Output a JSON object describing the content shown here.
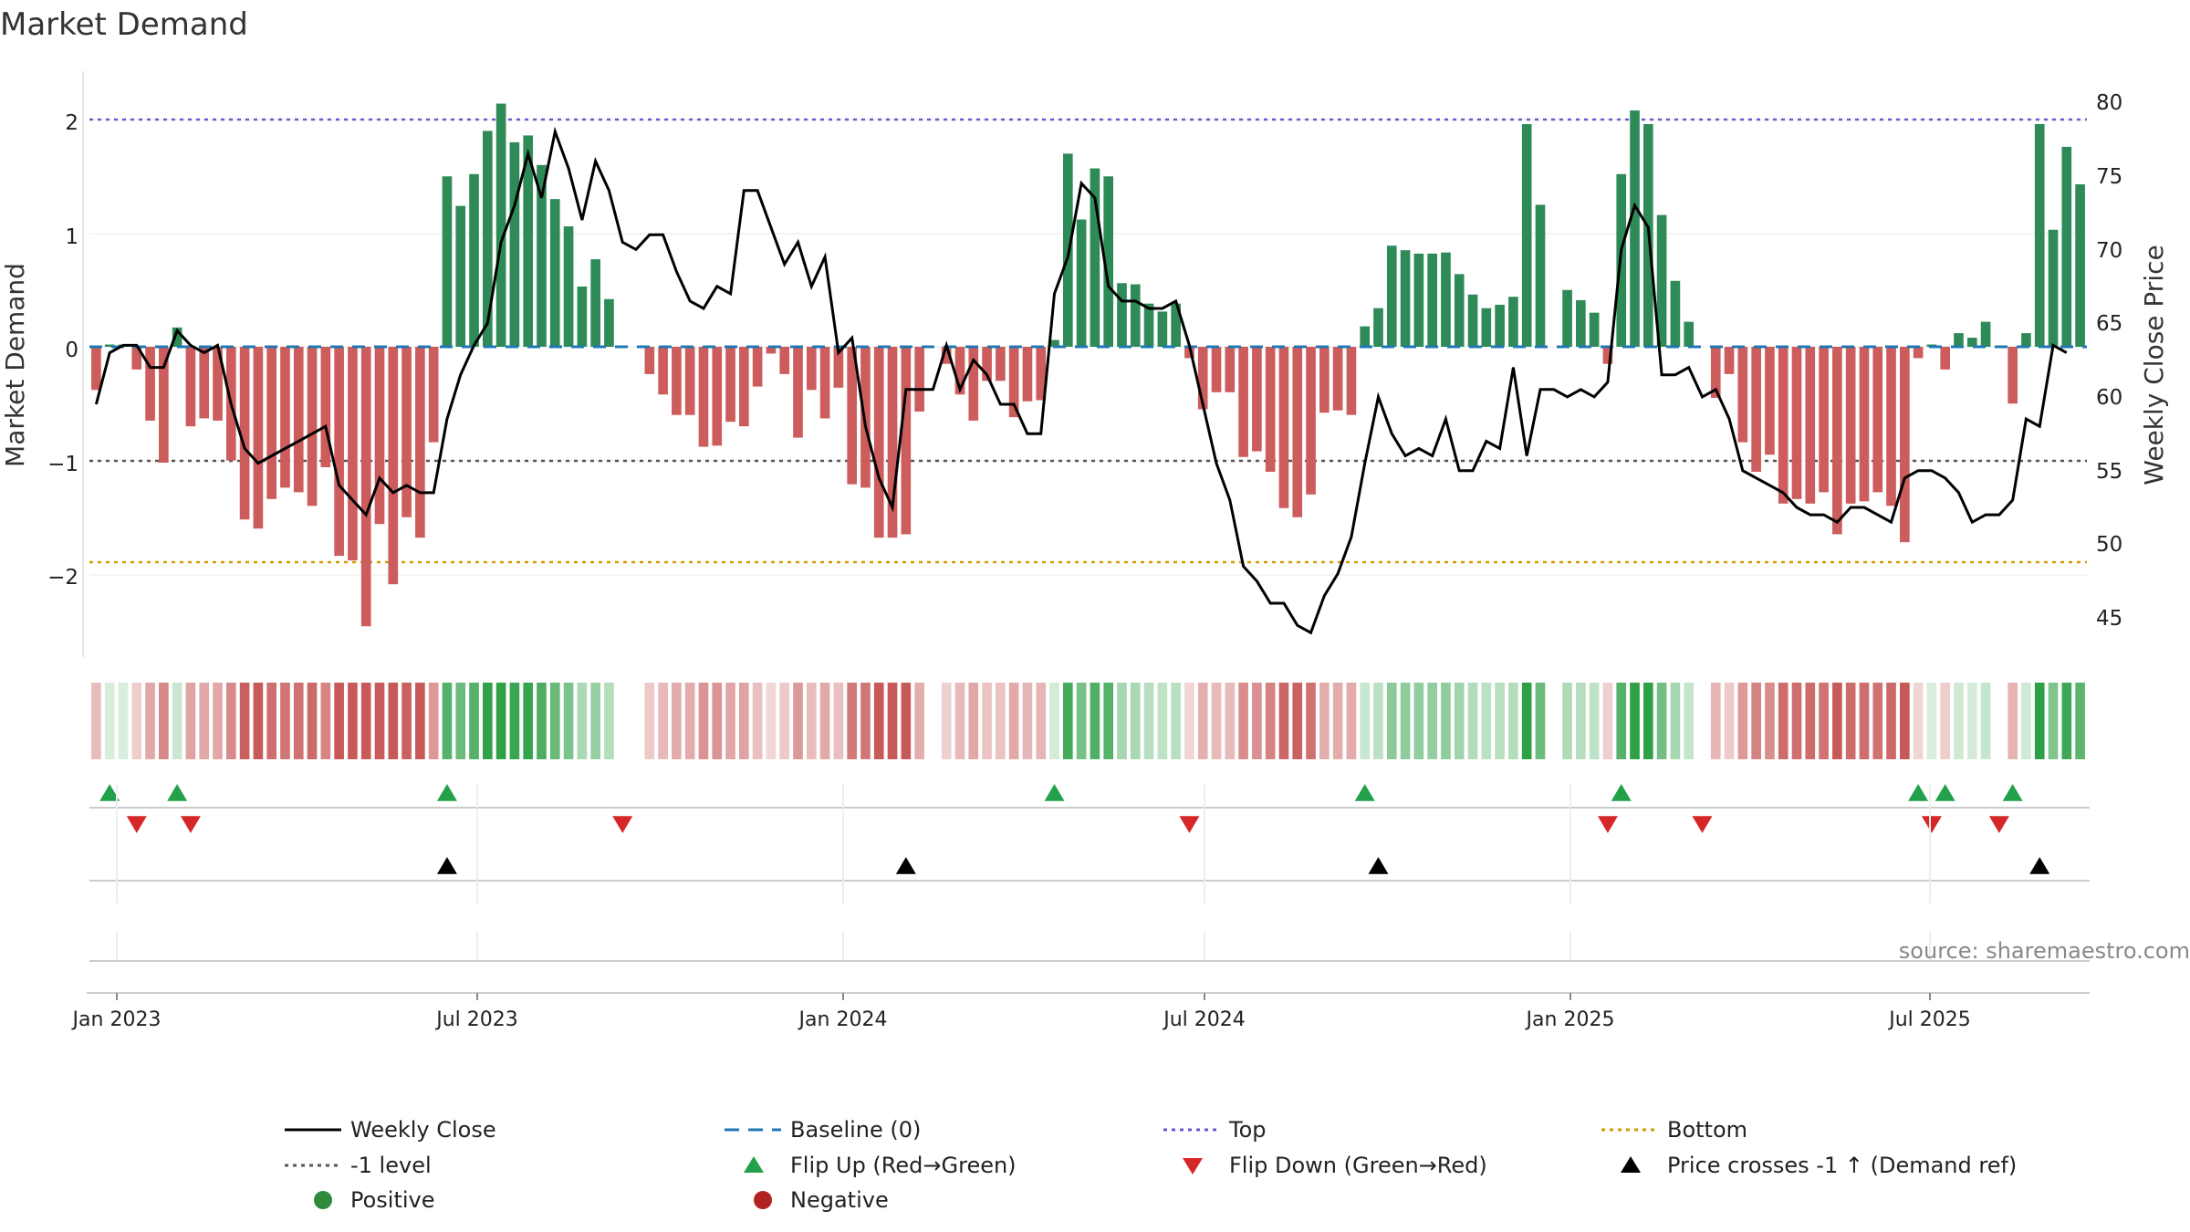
{
  "chart_data": {
    "type": "bar",
    "title": "Market Demand",
    "ylabel_left": "Market Demand",
    "ylabel_right": "Weekly Close Price",
    "ylim_left": [
      -2.7,
      2.45
    ],
    "ylim_right": [
      41.5,
      81.5
    ],
    "yticks_left": [
      "2",
      "1",
      "0",
      "−1",
      "−2"
    ],
    "yticks_right": [
      "80",
      "75",
      "70",
      "65",
      "60",
      "55",
      "50",
      "45"
    ],
    "xticks": [
      "Jan 2023",
      "Jul 2023",
      "Jan 2024",
      "Jul 2024",
      "Jan 2025",
      "Jul 2025"
    ],
    "reference_lines": {
      "top": 2,
      "level_minus1": -1,
      "bottom": -1.9,
      "baseline": 0
    },
    "series": [
      {
        "name": "Market Demand",
        "values": [
          -0.38,
          0.02,
          0.02,
          -0.2,
          -0.65,
          -1.02,
          0.17,
          -0.7,
          -0.63,
          -0.65,
          -1.0,
          -1.52,
          -1.6,
          -1.34,
          -1.24,
          -1.28,
          -1.4,
          -1.06,
          -1.84,
          -1.88,
          -2.46,
          -1.56,
          -2.09,
          -1.5,
          -1.68,
          -0.84,
          1.5,
          1.24,
          1.52,
          1.9,
          2.14,
          1.8,
          1.86,
          1.6,
          1.3,
          1.06,
          0.53,
          0.77,
          0.42,
          0.0,
          0.0,
          -0.24,
          -0.42,
          -0.6,
          -0.6,
          -0.88,
          -0.87,
          -0.66,
          -0.7,
          -0.35,
          -0.06,
          -0.24,
          -0.8,
          -0.38,
          -0.63,
          -0.36,
          -1.21,
          -1.24,
          -1.68,
          -1.68,
          -1.65,
          -0.57,
          0.0,
          -0.15,
          -0.42,
          -0.65,
          -0.3,
          -0.3,
          -0.62,
          -0.48,
          -0.47,
          0.06,
          1.7,
          1.12,
          1.57,
          1.5,
          0.56,
          0.55,
          0.38,
          0.31,
          0.38,
          -0.1,
          -0.55,
          -0.4,
          -0.4,
          -0.97,
          -0.92,
          -1.1,
          -1.42,
          -1.5,
          -1.3,
          -0.58,
          -0.56,
          -0.6,
          0.18,
          0.34,
          0.89,
          0.85,
          0.82,
          0.82,
          0.83,
          0.64,
          0.46,
          0.34,
          0.37,
          0.44,
          1.96,
          1.25,
          0.0,
          0.5,
          0.41,
          0.3,
          -0.15,
          1.52,
          2.08,
          1.96,
          1.16,
          0.58,
          0.22,
          0.0,
          -0.45,
          -0.24,
          -0.84,
          -1.1,
          -0.95,
          -1.38,
          -1.34,
          -1.38,
          -1.28,
          -1.65,
          -1.38,
          -1.36,
          -1.28,
          -1.4,
          -1.72,
          -0.1,
          0.02,
          -0.2,
          0.12,
          0.08,
          0.22,
          0.0,
          -0.5,
          0.12,
          1.96,
          1.03,
          1.76,
          1.43
        ]
      },
      {
        "name": "Weekly Close",
        "values": [
          60,
          63.5,
          64,
          64,
          62.5,
          62.5,
          65,
          64,
          63.5,
          64,
          60,
          57,
          56,
          56.5,
          57,
          57.5,
          58,
          58.5,
          54.5,
          53.5,
          52.5,
          55,
          54,
          54.5,
          54,
          54,
          59,
          62,
          64,
          65.5,
          71,
          73.5,
          77,
          74,
          78.5,
          76,
          72.5,
          76.5,
          74.5,
          71,
          70.5,
          71.5,
          71.5,
          69,
          67,
          66.5,
          68,
          67.5,
          74.5,
          74.5,
          72,
          69.5,
          71,
          68,
          70,
          63.5,
          64.5,
          58.5,
          55,
          53,
          61,
          61,
          61,
          64,
          61,
          63,
          62,
          60,
          60,
          58,
          58,
          67.5,
          70,
          75,
          74,
          68,
          67,
          67,
          66.5,
          66.5,
          67,
          64,
          60,
          56,
          53.5,
          49,
          48,
          46.5,
          46.5,
          45,
          44.5,
          47,
          48.5,
          51,
          56,
          60.5,
          58,
          56.5,
          57,
          56.5,
          59,
          55.5,
          55.5,
          57.5,
          57,
          62.5,
          56.5,
          61,
          61,
          60.5,
          61,
          60.5,
          61.5,
          70.5,
          73.5,
          72,
          62,
          62,
          62.5,
          60.5,
          61,
          59,
          55.5,
          55,
          54.5,
          54,
          53,
          52.5,
          52.5,
          52,
          53,
          53,
          52.5,
          52,
          55,
          55.5,
          55.5,
          55,
          54,
          52,
          52.5,
          52.5,
          53.5,
          59,
          58.5,
          64,
          63.5
        ]
      }
    ],
    "heat_strip": "demand intensity per week (green positive, red negative)",
    "markers": {
      "flip_up_index": [
        1,
        6,
        26,
        71,
        94,
        113,
        135,
        137,
        142
      ],
      "flip_down_index": [
        3,
        7,
        39,
        81,
        112,
        119,
        136,
        141
      ],
      "price_cross_index": [
        26,
        60,
        95,
        144
      ]
    },
    "legend": [
      {
        "label": "Weekly Close",
        "kind": "line",
        "color": "#000000"
      },
      {
        "label": "Baseline (0)",
        "kind": "dash",
        "color": "#1f77b4"
      },
      {
        "label": "Top",
        "kind": "dot",
        "color": "#6a5acd"
      },
      {
        "label": "Bottom",
        "kind": "dot",
        "color": "#d49a00"
      },
      {
        "label": "-1 level",
        "kind": "dot",
        "color": "#555555"
      },
      {
        "label": "Flip Up (Red→Green)",
        "kind": "tri-up",
        "color": "#22a04a"
      },
      {
        "label": "Flip Down (Green→Red)",
        "kind": "tri-down",
        "color": "#d62728"
      },
      {
        "label": "Price crosses -1 ↑ (Demand ref)",
        "kind": "tri-up",
        "color": "#000000"
      },
      {
        "label": "Positive",
        "kind": "circle",
        "color": "#2e8b3c"
      },
      {
        "label": "Negative",
        "kind": "circle",
        "color": "#b22222"
      }
    ],
    "source": "source: sharemaestro.com",
    "colors": {
      "positive_bar": "#2e8b57",
      "negative_bar": "#cd5c5c",
      "close_line": "#000000"
    }
  }
}
